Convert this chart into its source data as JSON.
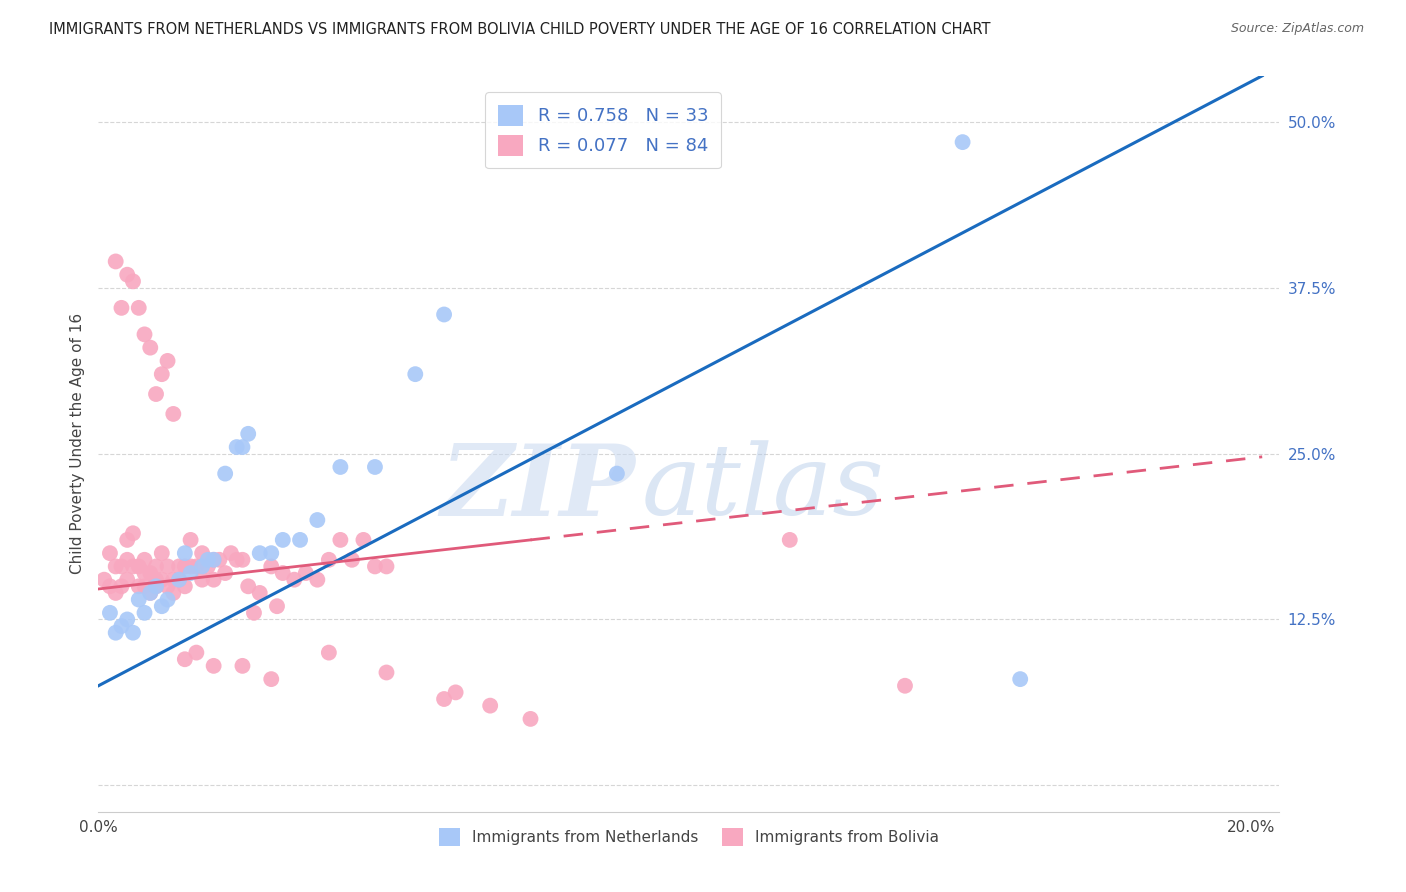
{
  "title": "IMMIGRANTS FROM NETHERLANDS VS IMMIGRANTS FROM BOLIVIA CHILD POVERTY UNDER THE AGE OF 16 CORRELATION CHART",
  "source": "Source: ZipAtlas.com",
  "ylabel": "Child Poverty Under the Age of 16",
  "x_ticks": [
    0.0,
    0.04,
    0.08,
    0.12,
    0.16,
    0.2
  ],
  "x_tick_labels": [
    "0.0%",
    "",
    "",
    "",
    "",
    "20.0%"
  ],
  "y_ticks": [
    0.0,
    0.125,
    0.25,
    0.375,
    0.5
  ],
  "y_tick_labels": [
    "",
    "12.5%",
    "25.0%",
    "37.5%",
    "50.0%"
  ],
  "xlim": [
    0.0,
    0.205
  ],
  "ylim": [
    -0.02,
    0.535
  ],
  "netherlands_color": "#a8c8f8",
  "bolivia_color": "#f8a8c0",
  "netherlands_line_color": "#1a6bbf",
  "bolivia_line_color": "#e05a7a",
  "R_netherlands": 0.758,
  "N_netherlands": 33,
  "R_bolivia": 0.077,
  "N_bolivia": 84,
  "watermark_zip": "ZIP",
  "watermark_atlas": "atlas",
  "legend_label_netherlands": "Immigrants from Netherlands",
  "legend_label_bolivia": "Immigrants from Bolivia",
  "nl_line_x0": 0.0,
  "nl_line_y0": 0.075,
  "nl_line_x1": 0.202,
  "nl_line_y1": 0.535,
  "bo_line_x0": 0.0,
  "bo_line_y0": 0.148,
  "bo_line_x1": 0.075,
  "bo_line_x1_solid": 0.075,
  "bo_line_x1_dashed": 0.202,
  "bo_line_y1": 0.185,
  "bo_line_y1_dashed": 0.225,
  "nl_scatter_x": [
    0.002,
    0.003,
    0.004,
    0.005,
    0.006,
    0.007,
    0.008,
    0.009,
    0.01,
    0.011,
    0.012,
    0.014,
    0.015,
    0.016,
    0.018,
    0.019,
    0.02,
    0.022,
    0.024,
    0.025,
    0.026,
    0.028,
    0.03,
    0.032,
    0.035,
    0.038,
    0.042,
    0.048,
    0.055,
    0.06,
    0.09,
    0.15,
    0.16
  ],
  "nl_scatter_y": [
    0.13,
    0.115,
    0.12,
    0.125,
    0.115,
    0.14,
    0.13,
    0.145,
    0.15,
    0.135,
    0.14,
    0.155,
    0.175,
    0.16,
    0.165,
    0.17,
    0.17,
    0.235,
    0.255,
    0.255,
    0.265,
    0.175,
    0.175,
    0.185,
    0.185,
    0.2,
    0.24,
    0.24,
    0.31,
    0.355,
    0.235,
    0.485,
    0.08
  ],
  "bo_scatter_x": [
    0.001,
    0.002,
    0.002,
    0.003,
    0.003,
    0.004,
    0.004,
    0.005,
    0.005,
    0.005,
    0.006,
    0.006,
    0.007,
    0.007,
    0.008,
    0.008,
    0.008,
    0.009,
    0.009,
    0.01,
    0.01,
    0.01,
    0.011,
    0.011,
    0.012,
    0.012,
    0.013,
    0.013,
    0.014,
    0.014,
    0.015,
    0.015,
    0.016,
    0.016,
    0.017,
    0.018,
    0.018,
    0.019,
    0.02,
    0.02,
    0.021,
    0.022,
    0.023,
    0.024,
    0.025,
    0.026,
    0.027,
    0.028,
    0.03,
    0.031,
    0.032,
    0.034,
    0.036,
    0.038,
    0.04,
    0.042,
    0.044,
    0.046,
    0.048,
    0.05,
    0.003,
    0.004,
    0.005,
    0.006,
    0.007,
    0.008,
    0.009,
    0.01,
    0.011,
    0.012,
    0.013,
    0.015,
    0.017,
    0.02,
    0.025,
    0.03,
    0.04,
    0.05,
    0.06,
    0.062,
    0.068,
    0.075,
    0.12,
    0.14
  ],
  "bo_scatter_y": [
    0.155,
    0.175,
    0.15,
    0.145,
    0.165,
    0.165,
    0.15,
    0.185,
    0.17,
    0.155,
    0.19,
    0.165,
    0.165,
    0.15,
    0.15,
    0.16,
    0.17,
    0.16,
    0.145,
    0.15,
    0.165,
    0.155,
    0.155,
    0.175,
    0.15,
    0.165,
    0.155,
    0.145,
    0.165,
    0.155,
    0.165,
    0.15,
    0.165,
    0.185,
    0.165,
    0.155,
    0.175,
    0.165,
    0.155,
    0.17,
    0.17,
    0.16,
    0.175,
    0.17,
    0.17,
    0.15,
    0.13,
    0.145,
    0.165,
    0.135,
    0.16,
    0.155,
    0.16,
    0.155,
    0.17,
    0.185,
    0.17,
    0.185,
    0.165,
    0.165,
    0.395,
    0.36,
    0.385,
    0.38,
    0.36,
    0.34,
    0.33,
    0.295,
    0.31,
    0.32,
    0.28,
    0.095,
    0.1,
    0.09,
    0.09,
    0.08,
    0.1,
    0.085,
    0.065,
    0.07,
    0.06,
    0.05,
    0.185,
    0.075
  ]
}
